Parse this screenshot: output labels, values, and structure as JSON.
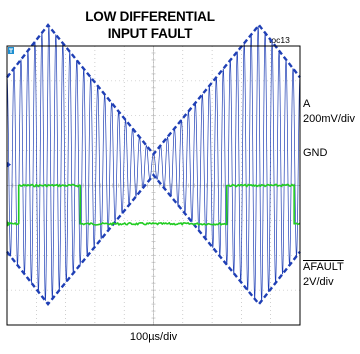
{
  "header": {
    "title_line1": "LOW DIFFERENTIAL",
    "title_line2": "INPUT FAULT",
    "figure_code": "toc13"
  },
  "labels": {
    "ch_a_name": "A",
    "ch_a_scale": "200mV/div",
    "gnd": "GND",
    "afault_name": "AFAULT",
    "afault_scale": "2V/div",
    "timebase": "100µs/div"
  },
  "colors": {
    "background": "#ffffff",
    "grid": "#b0b0b0",
    "frame": "#000000",
    "channel_a": "#1f3fb5",
    "afault": "#22cc22",
    "trigger_marker": "#1f8fd0"
  },
  "chart_data": {
    "type": "line",
    "title": "LOW DIFFERENTIAL INPUT FAULT",
    "xlabel": "100µs/div",
    "grid": true,
    "divisions": {
      "x": 10,
      "y": 8
    },
    "xlim": [
      0,
      1000
    ],
    "x_unit": "µs",
    "series": [
      {
        "name": "A",
        "scale": "200mV/div",
        "kind": "amplitude-modulated-carrier",
        "carrier_cycles": 42,
        "envelope_peak_div": [
          [
            0,
            2.5
          ],
          [
            140,
            4.0
          ],
          [
            500,
            0.3
          ],
          [
            860,
            4.0
          ],
          [
            1000,
            2.5
          ]
        ],
        "center_div": 0.6,
        "style": "dashed-envelope"
      },
      {
        "name": "AFAULT",
        "scale": "2V/div",
        "kind": "logic",
        "low_div": -1.1,
        "high_div": 0.0,
        "points": [
          [
            0,
            "low"
          ],
          [
            40,
            "high"
          ],
          [
            250,
            "low"
          ],
          [
            750,
            "high"
          ],
          [
            980,
            "low"
          ]
        ]
      }
    ]
  }
}
